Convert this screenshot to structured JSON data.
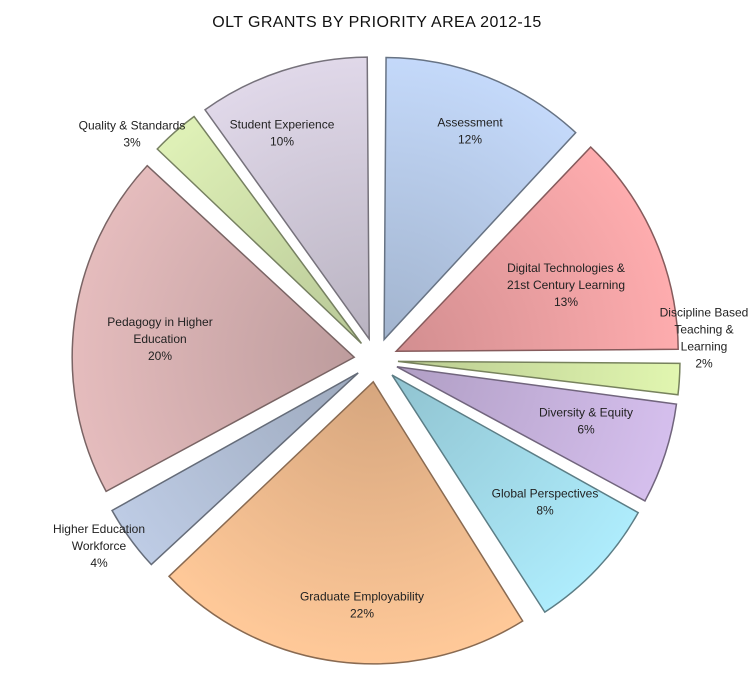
{
  "chart_data": {
    "type": "pie",
    "title": "OLT GRANTS BY PRIORITY AREA 2012-15",
    "slices": [
      {
        "label": "Assessment",
        "value": 12,
        "value_label": "12%",
        "color": "#bcd1f0"
      },
      {
        "label": "Digital Technologies & 21st Century Learning",
        "value": 13,
        "value_label": "13%",
        "color": "#f4a5a7",
        "label_lines": [
          "Digital Technologies &",
          "21st Century Learning"
        ]
      },
      {
        "label": "Discipline Based Teaching & Learning",
        "value": 2,
        "value_label": "2%",
        "color": "#d8eda9",
        "label_lines": [
          "Discipline Based",
          "Teaching &",
          "Learning"
        ]
      },
      {
        "label": "Diversity & Equity",
        "value": 6,
        "value_label": "6%",
        "color": "#cdb8e4"
      },
      {
        "label": "Global Perspectives",
        "value": 8,
        "value_label": "8%",
        "color": "#a7e3f2"
      },
      {
        "label": "Graduate Employability",
        "value": 22,
        "value_label": "22%",
        "color": "#f9c193"
      },
      {
        "label": "Higher Education Workforce",
        "value": 4,
        "value_label": "4%",
        "color": "#b7c4dc",
        "label_lines": [
          "Higher Education",
          "Workforce"
        ]
      },
      {
        "label": "Pedagogy in Higher Education",
        "value": 20,
        "value_label": "20%",
        "color": "#dcb5b6",
        "label_lines": [
          "Pedagogy in Higher",
          "Education"
        ]
      },
      {
        "label": "Quality & Standards",
        "value": 3,
        "value_label": "3%",
        "color": "#d6e8b0"
      },
      {
        "label": "Student Experience",
        "value": 10,
        "value_label": "10%",
        "color": "#d7d0e0"
      }
    ],
    "legend": "none"
  }
}
